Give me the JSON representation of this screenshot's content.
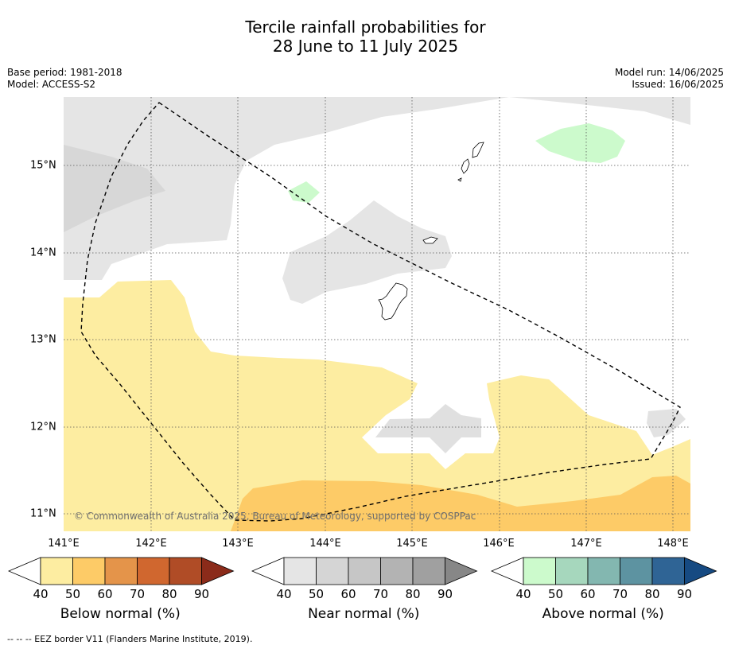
{
  "title_line1": "Tercile rainfall probabilities for",
  "title_line2": "28 June to 11 July 2025",
  "meta": {
    "base_period": "Base period: 1981-2018",
    "model": "Model: ACCESS-S2",
    "model_run": "Model run: 14/06/2025",
    "issued": "Issued: 16/06/2025"
  },
  "map": {
    "lat_labels": [
      "15°N",
      "14°N",
      "13°N",
      "12°N",
      "11°N"
    ],
    "lon_labels": [
      "141°E",
      "142°E",
      "143°E",
      "144°E",
      "145°E",
      "146°E",
      "147°E",
      "148°E"
    ],
    "copyright": "© Commonwealth of Australia 2025, Bureau of Meteorology, supported by COSPPac"
  },
  "colorbars": [
    {
      "label": "Below normal (%)",
      "ticks": [
        "40",
        "50",
        "60",
        "70",
        "80",
        "90"
      ],
      "colors": [
        "#fdeda1",
        "#fdcb67",
        "#e4944a",
        "#d0672f",
        "#b04c26",
        "#8b2b1a"
      ]
    },
    {
      "label": "Near normal (%)",
      "ticks": [
        "40",
        "50",
        "60",
        "70",
        "80",
        "90"
      ],
      "colors": [
        "#e5e5e5",
        "#d5d5d5",
        "#c6c6c6",
        "#b3b3b3",
        "#a0a0a0",
        "#878787"
      ]
    },
    {
      "label": "Above normal (%)",
      "ticks": [
        "40",
        "50",
        "60",
        "70",
        "80",
        "90"
      ],
      "colors": [
        "#ccfacc",
        "#a6d7bd",
        "#83b7b0",
        "#5d93a1",
        "#2f6495",
        "#164a82"
      ]
    }
  ],
  "footnote": "--  --  -- EEZ border V11 (Flanders Marine Institute, 2019)."
}
